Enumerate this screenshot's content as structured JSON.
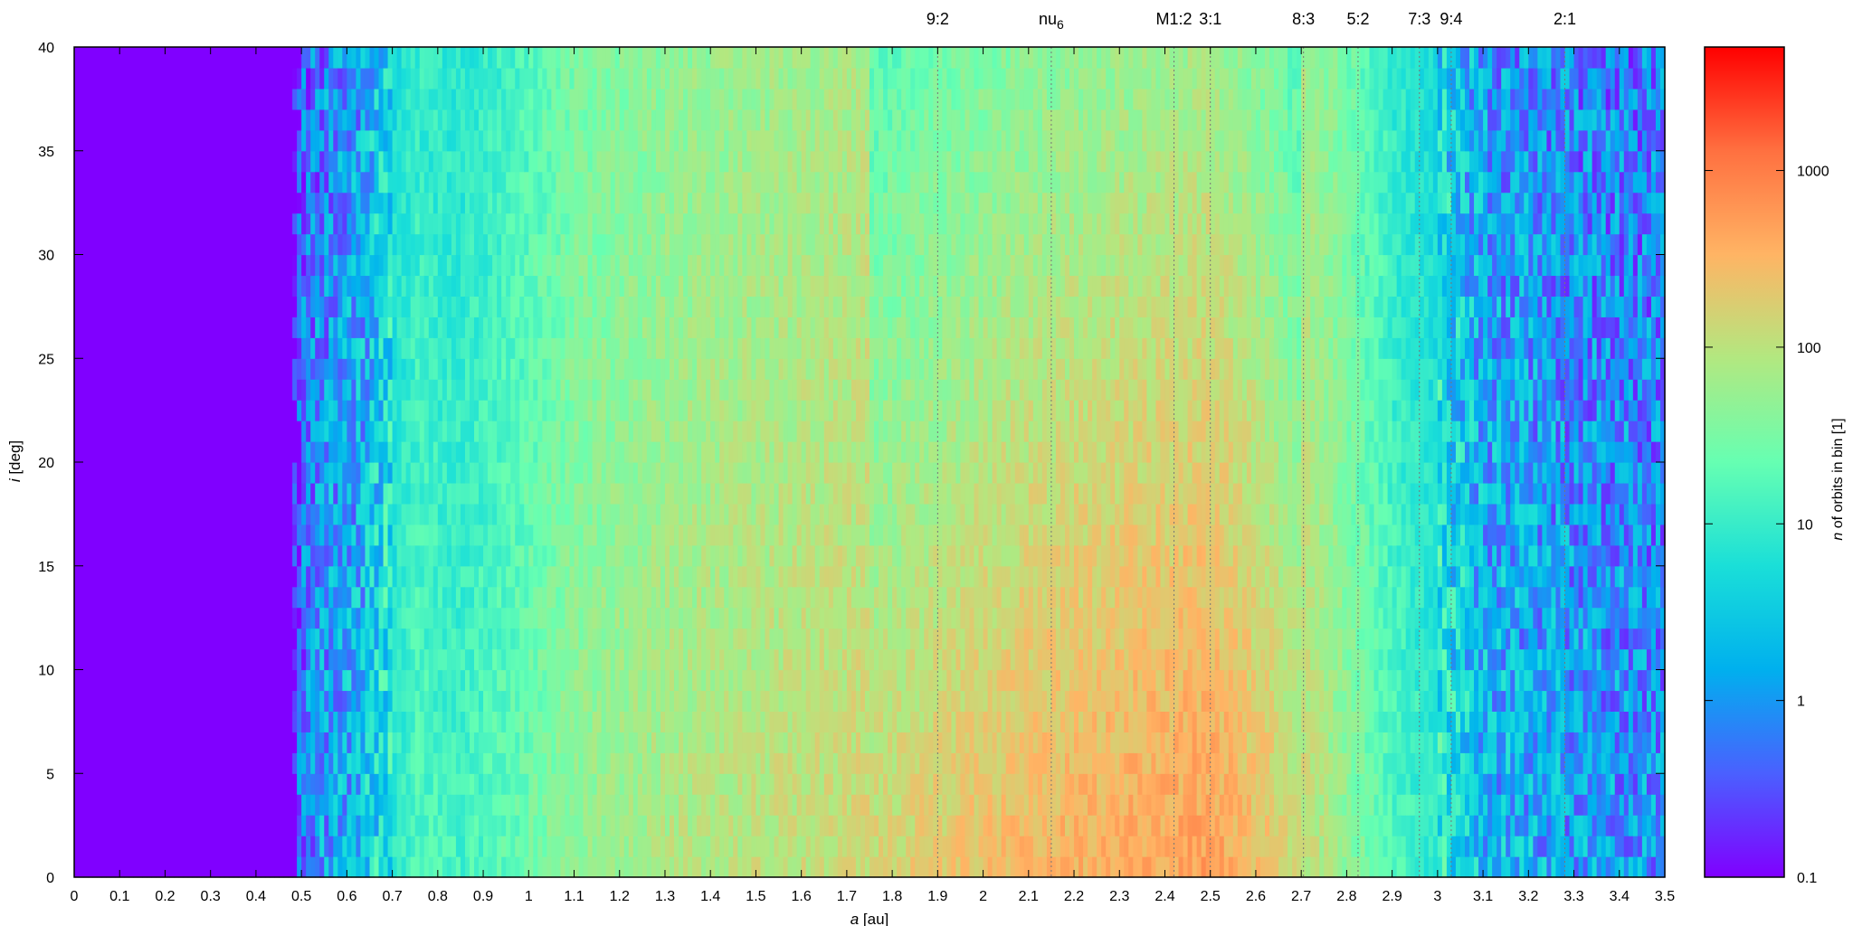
{
  "chart_data": {
    "type": "heatmap",
    "title": "",
    "xlabel_italic": "a",
    "xlabel_rest": " [au]",
    "ylabel_italic": "i",
    "ylabel_rest": " [deg]",
    "colorbar_label_italic": "n",
    "colorbar_label_rest": " of orbits in bin [1]",
    "xlim": [
      0,
      3.5
    ],
    "ylim": [
      0,
      40
    ],
    "x_ticks": [
      "0",
      "0.1",
      "0.2",
      "0.3",
      "0.4",
      "0.5",
      "0.6",
      "0.7",
      "0.8",
      "0.9",
      "1",
      "1.1",
      "1.2",
      "1.3",
      "1.4",
      "1.5",
      "1.6",
      "1.7",
      "1.8",
      "1.9",
      "2",
      "2.1",
      "2.2",
      "2.3",
      "2.4",
      "2.5",
      "2.6",
      "2.7",
      "2.8",
      "2.9",
      "3",
      "3.1",
      "3.2",
      "3.3",
      "3.4",
      "3.5"
    ],
    "y_ticks": [
      "0",
      "5",
      "10",
      "15",
      "20",
      "25",
      "30",
      "35",
      "40"
    ],
    "colorbar": {
      "scale": "log",
      "range": [
        0.1,
        5000
      ],
      "ticks": [
        {
          "value": 0.1,
          "label": "0.1"
        },
        {
          "value": 1,
          "label": "1"
        },
        {
          "value": 10,
          "label": "10"
        },
        {
          "value": 100,
          "label": "100"
        },
        {
          "value": 1000,
          "label": "1000"
        }
      ],
      "palette": [
        "#8000ff",
        "#4a60ff",
        "#00b0ee",
        "#1adfd8",
        "#66ffb2",
        "#b2e880",
        "#ffb464",
        "#ff7040",
        "#ff0000"
      ]
    },
    "resonances": [
      {
        "label": "9:2",
        "a": 1.9
      },
      {
        "label": "nu",
        "sub": "6",
        "a": 2.15
      },
      {
        "label": "M1:2",
        "a": 2.42
      },
      {
        "label": "3:1",
        "a": 2.5
      },
      {
        "label": "8:3",
        "a": 2.705
      },
      {
        "label": "5:2",
        "a": 2.825
      },
      {
        "label": "7:3",
        "a": 2.96
      },
      {
        "label": "9:4",
        "a": 3.03
      },
      {
        "label": "2:1",
        "a": 3.28
      }
    ],
    "density_profile": [
      {
        "a": 0.0,
        "log_n": -1.0
      },
      {
        "a": 0.48,
        "log_n": -1.0
      },
      {
        "a": 0.5,
        "log_n": -0.2
      },
      {
        "a": 0.55,
        "log_n": 0.1
      },
      {
        "a": 0.63,
        "log_n": 0.3
      },
      {
        "a": 0.68,
        "log_n": 0.8
      },
      {
        "a": 0.75,
        "log_n": 1.2
      },
      {
        "a": 0.85,
        "log_n": 1.1
      },
      {
        "a": 0.95,
        "log_n": 1.3
      },
      {
        "a": 1.1,
        "log_n": 1.7
      },
      {
        "a": 1.3,
        "log_n": 1.9
      },
      {
        "a": 1.5,
        "log_n": 2.0
      },
      {
        "a": 1.7,
        "log_n": 2.1
      },
      {
        "a": 1.9,
        "log_n": 2.3
      },
      {
        "a": 2.1,
        "log_n": 2.5
      },
      {
        "a": 2.3,
        "log_n": 2.6
      },
      {
        "a": 2.5,
        "log_n": 2.7
      },
      {
        "a": 2.62,
        "log_n": 2.4
      },
      {
        "a": 2.75,
        "log_n": 1.9
      },
      {
        "a": 2.9,
        "log_n": 1.2
      },
      {
        "a": 3.0,
        "log_n": 0.9
      },
      {
        "a": 3.1,
        "log_n": 0.3
      },
      {
        "a": 3.3,
        "log_n": 0.1
      },
      {
        "a": 3.5,
        "log_n": 0.0
      }
    ]
  }
}
